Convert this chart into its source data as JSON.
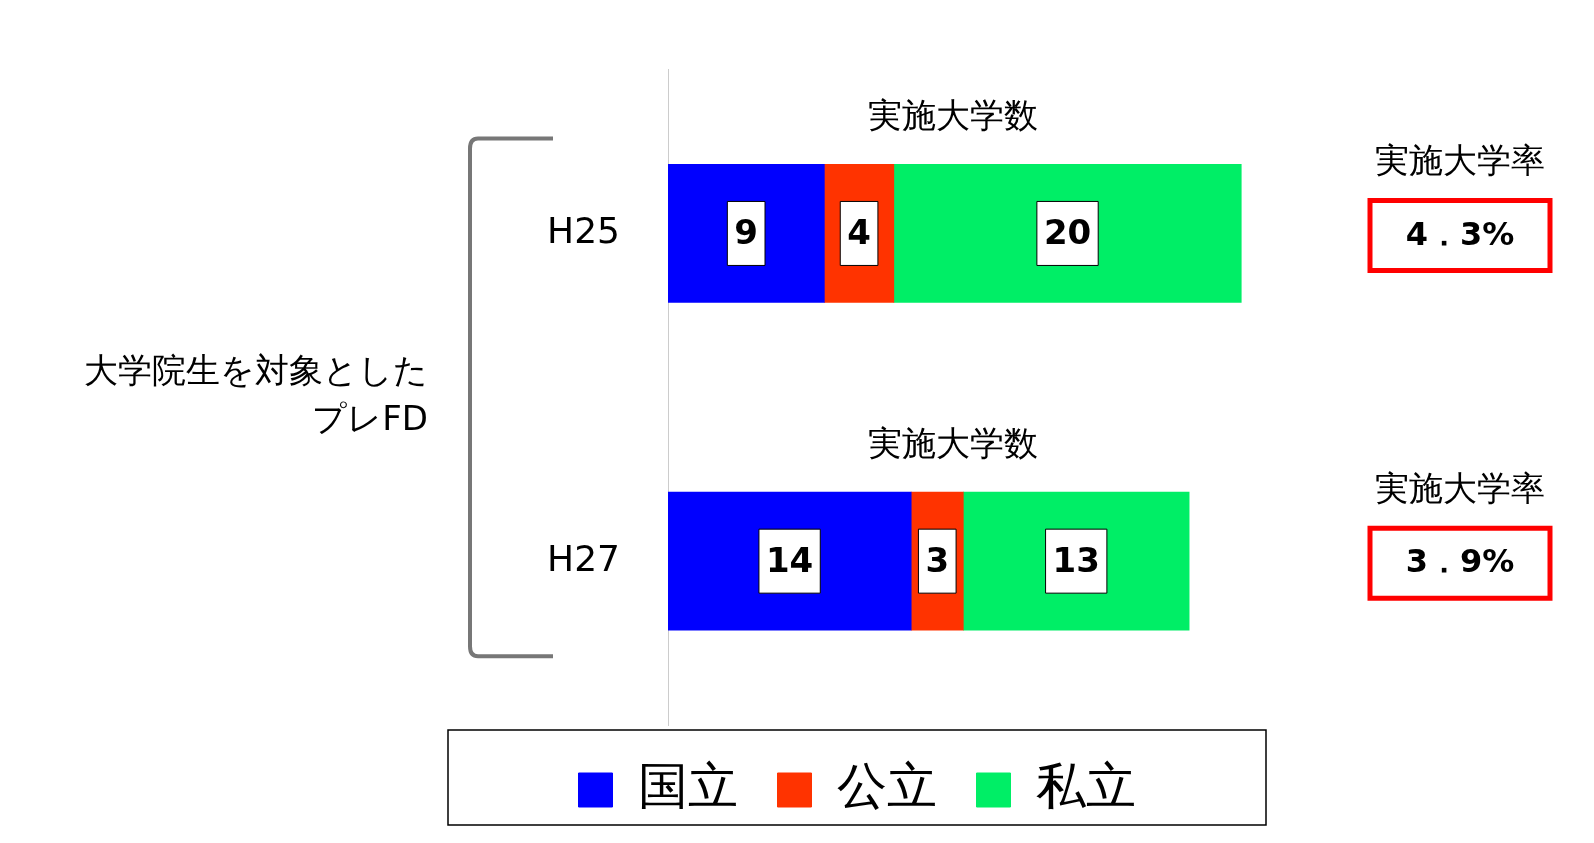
{
  "chart_data": {
    "type": "bar",
    "orientation": "horizontal",
    "stacked": true,
    "categories": [
      "H25",
      "H27"
    ],
    "series": [
      {
        "name": "国立",
        "color": "#0000ff",
        "values": [
          9,
          14
        ]
      },
      {
        "name": "公立",
        "color": "#ff3300",
        "values": [
          4,
          3
        ]
      },
      {
        "name": "私立",
        "color": "#00ee66",
        "values": [
          20,
          13
        ]
      }
    ],
    "data_labels": true,
    "legend": "bottom",
    "grid": false,
    "annotations": [
      "大学院生を対象としたプレFD",
      "実施大学数",
      "実施大学率",
      "4．3%",
      "実施大学数",
      "実施大学率",
      "3．9%"
    ]
  }
}
